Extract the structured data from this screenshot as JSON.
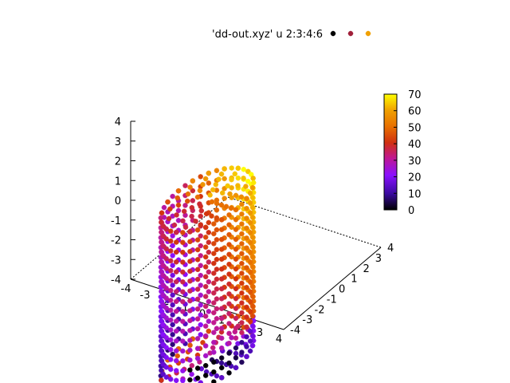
{
  "chart_data": {
    "type": "scatter",
    "title": "",
    "legend": {
      "label": "'dd-out.xyz' u 2:3:4:6",
      "placement": "top"
    },
    "z_axis": {
      "ticks": [
        "-4",
        "-3",
        "-2",
        "-1",
        "0",
        "1",
        "2",
        "3",
        "4"
      ],
      "range": [
        -4,
        4
      ]
    },
    "x_axis": {
      "ticks": [
        "-4",
        "-3",
        "-2",
        "-1",
        "0",
        "1",
        "2",
        "3",
        "4"
      ],
      "range": [
        -4,
        4
      ]
    },
    "y_axis": {
      "ticks": [
        "-4",
        "-3",
        "-2",
        "-1",
        "0",
        "1",
        "2",
        "3",
        "4"
      ],
      "range": [
        -4,
        4
      ]
    },
    "colorbar": {
      "ticks": [
        "0",
        "10",
        "20",
        "30",
        "40",
        "50",
        "60",
        "70"
      ],
      "range": [
        0,
        70
      ]
    },
    "shape": {
      "kind": "cylinder",
      "radius": 3,
      "z_range": [
        -4,
        4
      ],
      "has_cap": true
    }
  }
}
